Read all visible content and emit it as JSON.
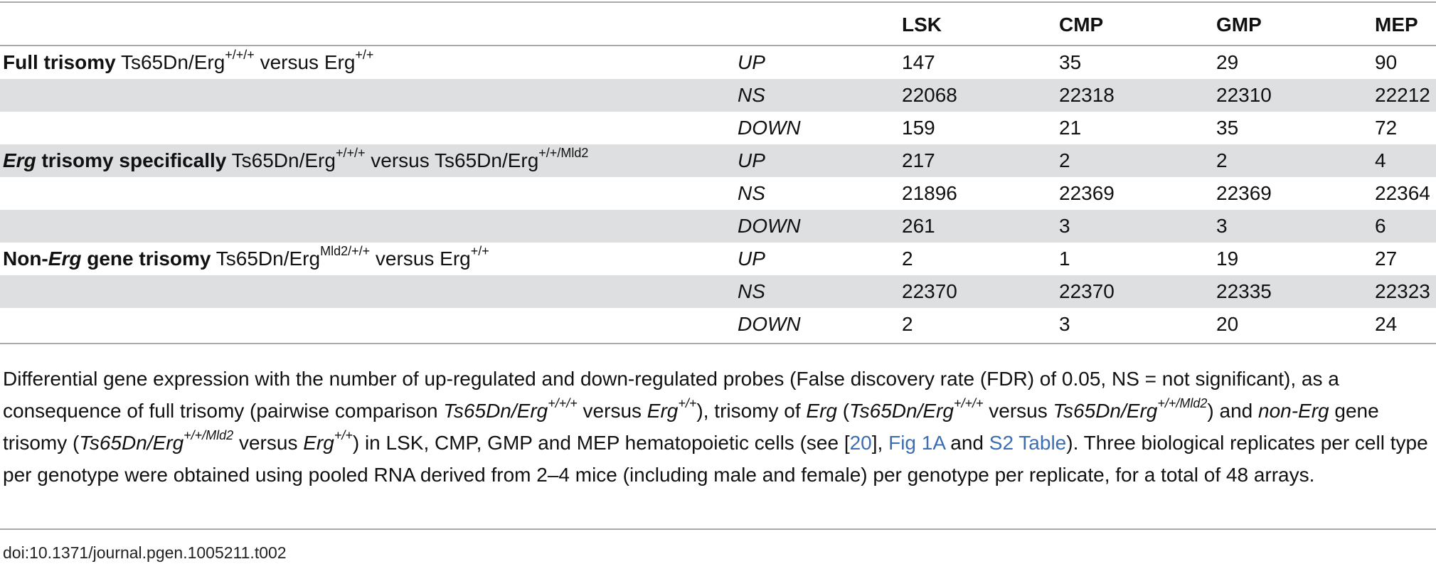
{
  "table": {
    "columns": [
      "",
      "",
      "LSK",
      "CMP",
      "GMP",
      "MEP"
    ],
    "groups": [
      {
        "label_bold": "Full trisomy",
        "label_bold_italic_prefix": "",
        "label_rest": " Ts65Dn/Erg",
        "sup1": "+/+/+",
        "mid": " versus Erg",
        "sup2": "+/+",
        "rows": [
          {
            "dir": "UP",
            "values": [
              "147",
              "35",
              "29",
              "90"
            ]
          },
          {
            "dir": "NS",
            "values": [
              "22068",
              "22318",
              "22310",
              "22212"
            ]
          },
          {
            "dir": "DOWN",
            "values": [
              "159",
              "21",
              "35",
              "72"
            ]
          }
        ]
      },
      {
        "label_bold_italic_prefix": "Erg",
        "label_bold": " trisomy specifically",
        "label_rest": " Ts65Dn/Erg",
        "sup1": "+/+/+",
        "mid": " versus Ts65Dn/Erg",
        "sup2": "+/+/Mld2",
        "rows": [
          {
            "dir": "UP",
            "values": [
              "217",
              "2",
              "2",
              "4"
            ]
          },
          {
            "dir": "NS",
            "values": [
              "21896",
              "22369",
              "22369",
              "22364"
            ]
          },
          {
            "dir": "DOWN",
            "values": [
              "261",
              "3",
              "3",
              "6"
            ]
          }
        ]
      },
      {
        "label_bold": "Non-",
        "label_bold_italic_prefix": "Erg",
        "label_bold_after": " gene trisomy",
        "label_rest": " Ts65Dn/Erg",
        "sup1": "Mld2/+/+",
        "mid": " versus Erg",
        "sup2": "+/+",
        "rows": [
          {
            "dir": "UP",
            "values": [
              "2",
              "1",
              "19",
              "27"
            ]
          },
          {
            "dir": "NS",
            "values": [
              "22370",
              "22370",
              "22335",
              "22323"
            ]
          },
          {
            "dir": "DOWN",
            "values": [
              "2",
              "3",
              "20",
              "24"
            ]
          }
        ]
      }
    ]
  },
  "caption": {
    "p1": "Differential gene expression with the number of up-regulated and down-regulated probes (False discovery rate (FDR) of 0.05, NS = not significant), as a consequence of full trisomy (pairwise comparison ",
    "g1": "Ts65Dn/Erg",
    "g1sup": "+/+/+",
    "p2": " versus ",
    "g2": "Erg",
    "g2sup": "+/+",
    "p3": "), trisomy of ",
    "g3": "Erg",
    "p4": " (",
    "g4": "Ts65Dn/Erg",
    "g4sup": "+/+/+",
    "p5": " versus ",
    "g5": "Ts65Dn/Erg",
    "g5sup": "+/+/Mld2",
    "p6": ") and ",
    "g6": "non-Erg",
    "p7": " gene trisomy (",
    "g7": "Ts65Dn/Erg",
    "g7sup": "+/+/Mld2",
    "p8": " versus ",
    "g8": "Erg",
    "g8sup": "+/+",
    "p9": ") in LSK, CMP, GMP and MEP hematopoietic cells (see [",
    "ref": "20",
    "p10": "], ",
    "fig": "Fig 1A",
    "p11": " and ",
    "tab": "S2 Table",
    "p12": "). Three biological replicates per cell type per genotype were obtained using pooled RNA derived from 2–4 mice (including male and female) per genotype per replicate, for a total of 48 arrays."
  },
  "doi": "doi:10.1371/journal.pgen.1005211.t002",
  "colors": {
    "shade": "#dedfe0",
    "rule": "#a9a9a9",
    "link": "#3b6eb4"
  }
}
